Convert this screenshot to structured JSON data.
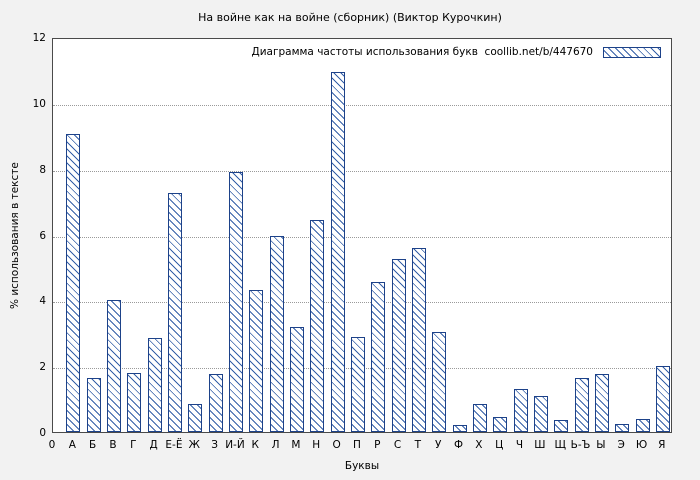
{
  "title": "На войне как на войне (сборник) (Виктор Курочкин)",
  "chart_data": {
    "type": "bar",
    "title": "На войне как на войне (сборник) (Виктор Курочкин)",
    "legend": "Диаграмма частоты использования букв  coollib.net/b/447670",
    "legend_position": "top-right",
    "xlabel": "Буквы",
    "ylabel": "% использования в тексте",
    "ylim": [
      0,
      12
    ],
    "yticks": [
      0,
      2,
      4,
      6,
      8,
      10,
      12
    ],
    "origin_label": "0",
    "grid": true,
    "bar_fill": "#ffffff",
    "bar_border_color": "#1d4289",
    "hatch_color": "#3560a8",
    "categories": [
      "А",
      "Б",
      "В",
      "Г",
      "Д",
      "Е-Ё",
      "Ж",
      "З",
      "И-Й",
      "К",
      "Л",
      "М",
      "Н",
      "О",
      "П",
      "Р",
      "С",
      "Т",
      "У",
      "Ф",
      "Х",
      "Ц",
      "Ч",
      "Ш",
      "Щ",
      "Ь-Ъ",
      "Ы",
      "Э",
      "Ю",
      "Я"
    ],
    "values": [
      9.05,
      1.65,
      4.02,
      1.8,
      2.85,
      7.25,
      0.85,
      1.75,
      7.9,
      4.3,
      5.95,
      3.2,
      6.45,
      10.95,
      2.9,
      4.55,
      5.25,
      5.6,
      3.05,
      0.2,
      0.85,
      0.45,
      1.3,
      1.1,
      0.35,
      1.65,
      1.75,
      0.25,
      0.4,
      2.0
    ]
  }
}
